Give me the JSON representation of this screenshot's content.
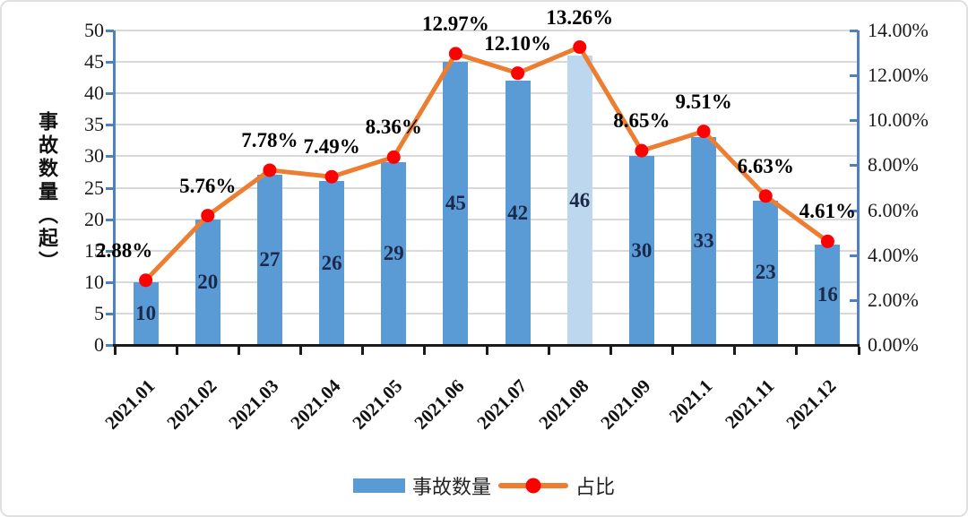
{
  "colors": {
    "bar": "#5B9BD5",
    "bar_highlight": "#BDD7EE",
    "line": "#ED7D31",
    "marker": "#FF0000",
    "axis_line": "#4F81BD",
    "gridline": "#D9D9D9",
    "x_axis": "#1A1A1A",
    "bar_label": "#1B2A4A",
    "pct_label": "#000000"
  },
  "chart_data": {
    "type": "combo-bar-line",
    "categories": [
      "2021.01",
      "2021.02",
      "2021.03",
      "2021.04",
      "2021.05",
      "2021.06",
      "2021.07",
      "2021.08",
      "2021.09",
      "2021.1",
      "2021.11",
      "2021.12"
    ],
    "series": [
      {
        "name": "事故数量",
        "type": "bar",
        "axis": "left",
        "values": [
          10,
          20,
          27,
          26,
          29,
          45,
          42,
          46,
          30,
          33,
          23,
          16
        ],
        "highlight_index": 7
      },
      {
        "name": "占比",
        "type": "line",
        "axis": "right",
        "values_percent": [
          2.88,
          5.76,
          7.78,
          7.49,
          8.36,
          12.97,
          12.1,
          13.26,
          8.65,
          9.51,
          6.63,
          4.61
        ],
        "labels": [
          "2.88%",
          "5.76%",
          "7.78%",
          "7.49%",
          "8.36%",
          "12.97%",
          "12.10%",
          "13.26%",
          "8.65%",
          "9.51%",
          "6.63%",
          "4.61%"
        ]
      }
    ],
    "left_axis": {
      "title": "事故数量（起）",
      "min": 0,
      "max": 50,
      "step": 5,
      "tick_labels": [
        "0",
        "5",
        "10",
        "15",
        "20",
        "25",
        "30",
        "35",
        "40",
        "45",
        "50"
      ]
    },
    "right_axis": {
      "min": 0,
      "max": 14,
      "step": 2,
      "tick_labels": [
        "0.00%",
        "2.00%",
        "4.00%",
        "6.00%",
        "8.00%",
        "10.00%",
        "12.00%",
        "14.00%"
      ]
    },
    "legend": {
      "position": "bottom",
      "entries": [
        "事故数量",
        "占比"
      ]
    },
    "grid": true
  }
}
